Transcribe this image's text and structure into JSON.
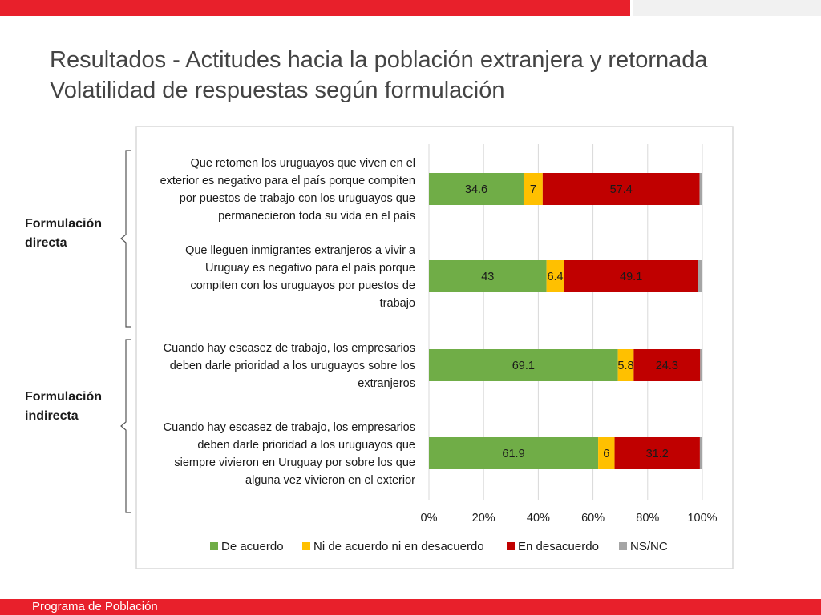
{
  "slide": {
    "title_line1": "Resultados - Actitudes hacia la población extranjera y retornada",
    "title_line2": "Volatilidad de respuestas según formulación",
    "footer": "Programa de Población"
  },
  "groups": [
    {
      "label_line1": "Formulación",
      "label_line2": "directa"
    },
    {
      "label_line1": "Formulación",
      "label_line2": "indirecta"
    }
  ],
  "colors": {
    "de_acuerdo": "#70ad47",
    "ni": "#ffc000",
    "desacuerdo": "#c00000",
    "nsnc": "#a5a5a5",
    "grid": "#d9d9d9",
    "border": "#d9d9d9"
  },
  "chart_data": {
    "type": "bar",
    "orientation": "horizontal",
    "stacked": "percent",
    "categories": [
      [
        "Que retomen los uruguayos que viven en el",
        "exterior es negativo para el país porque compiten",
        "por puestos de trabajo con los uruguayos que",
        "permanecieron toda su vida en el país"
      ],
      [
        "Que lleguen inmigrantes extranjeros a vivir a",
        "Uruguay es negativo para el país porque",
        "compiten con los uruguayos por puestos de",
        "trabajo"
      ],
      [
        "Cuando hay escasez de trabajo, los empresarios",
        "deben darle prioridad a los uruguayos sobre los",
        "extranjeros"
      ],
      [
        "Cuando hay escasez de trabajo, los empresarios",
        "deben darle prioridad a los uruguayos que",
        "siempre vivieron en Uruguay por sobre los que",
        "alguna vez vivieron en el exterior"
      ]
    ],
    "series": [
      {
        "name": "De acuerdo",
        "color_key": "de_acuerdo",
        "values": [
          34.6,
          43,
          69.1,
          61.9
        ],
        "labels": [
          "34.6",
          "43",
          "69.1",
          "61.9"
        ]
      },
      {
        "name": "Ni de acuerdo ni en desacuerdo",
        "color_key": "ni",
        "values": [
          7,
          6.4,
          5.8,
          6
        ],
        "labels": [
          "7",
          "6.4",
          "5.8",
          "6"
        ]
      },
      {
        "name": "En desacuerdo",
        "color_key": "desacuerdo",
        "values": [
          57.4,
          49.1,
          24.3,
          31.2
        ],
        "labels": [
          "57.4",
          "49.1",
          "24.3",
          "31.2"
        ]
      },
      {
        "name": "NS/NC",
        "color_key": "nsnc",
        "values": [
          1.0,
          1.5,
          0.8,
          0.9
        ],
        "labels": [
          "",
          "",
          "",
          ""
        ]
      }
    ],
    "x_ticks": [
      "0%",
      "20%",
      "40%",
      "60%",
      "80%",
      "100%"
    ],
    "xlim": [
      0,
      100
    ],
    "grid": true,
    "legend": "bottom"
  }
}
